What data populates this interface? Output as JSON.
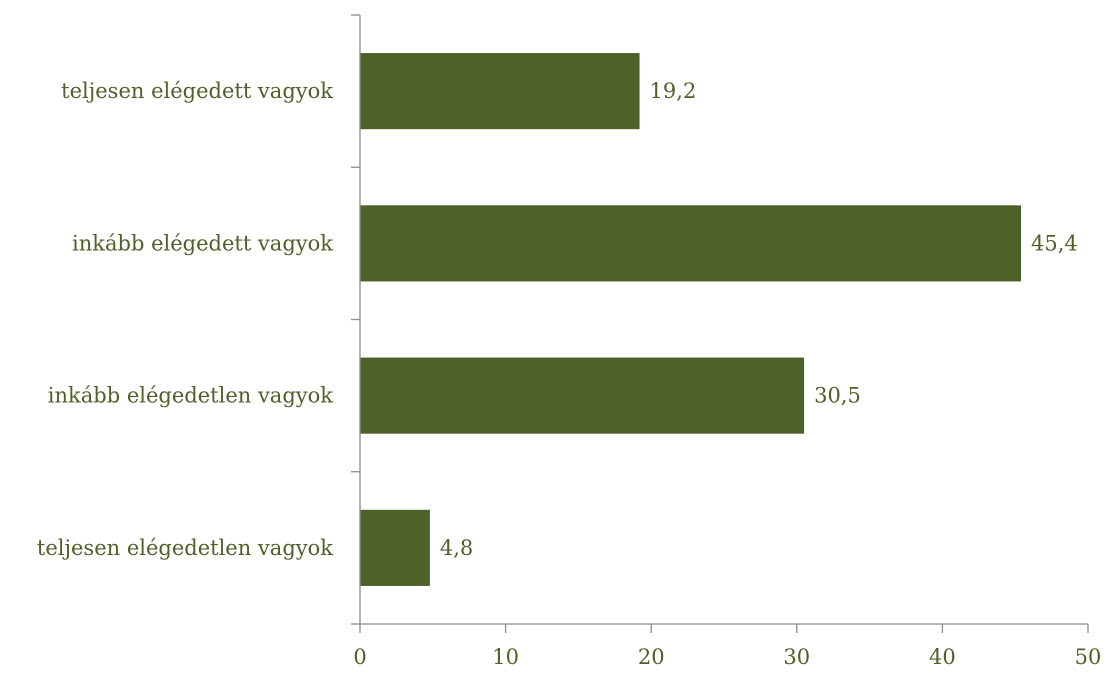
{
  "chart_data": {
    "type": "bar",
    "orientation": "horizontal",
    "categories": [
      "teljesen elégedett vagyok",
      "inkább elégedett vagyok",
      "inkább elégedetlen vagyok",
      "teljesen elégedetlen vagyok"
    ],
    "values": [
      19.2,
      45.4,
      30.5,
      4.8
    ],
    "value_labels": [
      "19,2",
      "45,4",
      "30,5",
      "4,8"
    ],
    "xlim": [
      0,
      50
    ],
    "xticks": [
      0,
      10,
      20,
      30,
      40,
      50
    ],
    "xtick_labels": [
      "0",
      "10",
      "20",
      "30",
      "40",
      "50"
    ],
    "grid": false,
    "legend": "none",
    "bar_color": "#4e6129",
    "text_color": "#4e6129",
    "axis_color": "#8c8c8c"
  }
}
